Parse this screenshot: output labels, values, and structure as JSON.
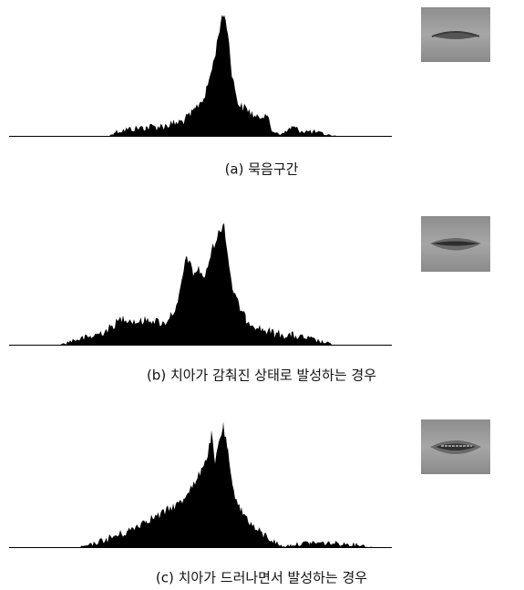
{
  "figures": [
    {
      "caption": "(a) 묵음구간"
    },
    {
      "caption": "(b) 치아가 감춰진 상태로 발성하는 경우"
    },
    {
      "caption": "(c) 치아가 드러나면서 발성하는 경우"
    }
  ]
}
